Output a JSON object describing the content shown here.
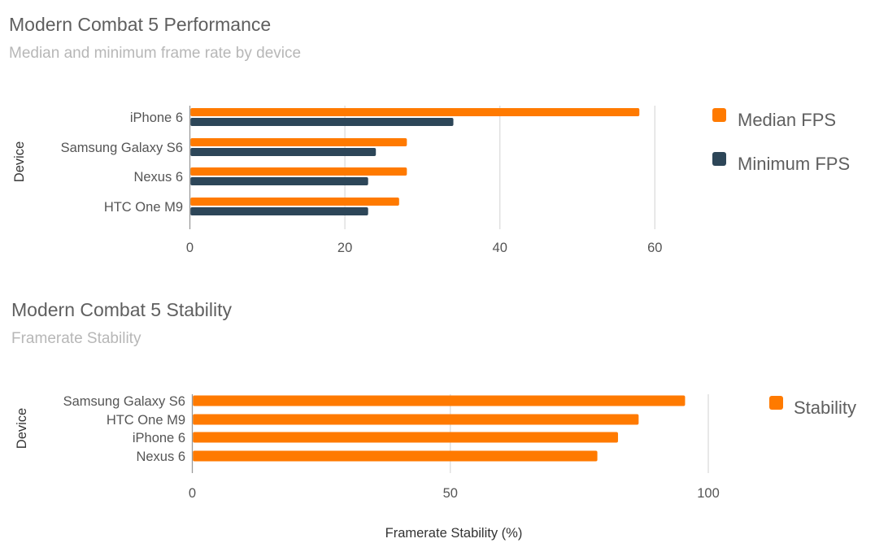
{
  "colors": {
    "orange": "#ff7a00",
    "navy": "#2d4658"
  },
  "chart_data": [
    {
      "type": "bar",
      "orientation": "horizontal",
      "title": "Modern Combat 5 Performance",
      "subtitle": "Median and minimum frame rate by device",
      "ylabel": "Device",
      "xlabel": "",
      "categories": [
        "iPhone 6",
        "Samsung Galaxy S6",
        "Nexus 6",
        "HTC One M9"
      ],
      "series": [
        {
          "name": "Median FPS",
          "color": "#ff7a00",
          "values": [
            58,
            28,
            28,
            27
          ]
        },
        {
          "name": "Minimum FPS",
          "color": "#2d4658",
          "values": [
            34,
            24,
            23,
            23
          ]
        }
      ],
      "xlim": [
        0,
        60
      ],
      "xticks": [
        "0",
        "20",
        "40",
        "60"
      ],
      "grid": true,
      "legend": "right"
    },
    {
      "type": "bar",
      "orientation": "horizontal",
      "title": "Modern Combat 5 Stability",
      "subtitle": "Framerate Stability",
      "ylabel": "Device",
      "xlabel": "Framerate Stability (%)",
      "categories": [
        "Samsung Galaxy S6",
        "HTC One M9",
        "iPhone 6",
        "Nexus 6"
      ],
      "series": [
        {
          "name": "Stability",
          "color": "#ff7a00",
          "values": [
            95.5,
            86.5,
            82.5,
            78.5
          ]
        }
      ],
      "xlim": [
        0,
        100
      ],
      "xticks": [
        "0",
        "50",
        "100"
      ],
      "grid": true,
      "legend": "right"
    }
  ]
}
